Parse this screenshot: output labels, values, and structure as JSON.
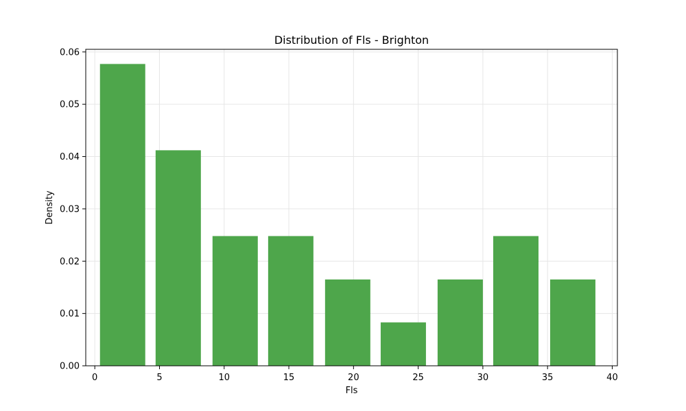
{
  "chart_data": {
    "type": "bar",
    "title": "Distribution of Fls - Brighton",
    "xlabel": "Fls",
    "ylabel": "Density",
    "xlim": [
      -0.7,
      40.4
    ],
    "ylim": [
      0,
      0.0605
    ],
    "xticks": [
      0,
      5,
      10,
      15,
      20,
      25,
      30,
      35,
      40
    ],
    "xtick_labels": [
      "0",
      "5",
      "10",
      "15",
      "20",
      "25",
      "30",
      "35",
      "40"
    ],
    "yticks": [
      0,
      0.01,
      0.02,
      0.03,
      0.04,
      0.05,
      0.06
    ],
    "ytick_labels": [
      "0.00",
      "0.01",
      "0.02",
      "0.03",
      "0.04",
      "0.05",
      "0.06"
    ],
    "grid": true,
    "bars": [
      {
        "x0": 0.4,
        "x1": 3.9,
        "value": 0.0577
      },
      {
        "x0": 4.7,
        "x1": 8.2,
        "value": 0.0412
      },
      {
        "x0": 9.1,
        "x1": 12.6,
        "value": 0.0248
      },
      {
        "x0": 13.4,
        "x1": 16.9,
        "value": 0.0248
      },
      {
        "x0": 17.8,
        "x1": 21.3,
        "value": 0.0165
      },
      {
        "x0": 22.1,
        "x1": 25.6,
        "value": 0.0083
      },
      {
        "x0": 26.5,
        "x1": 30.0,
        "value": 0.0165
      },
      {
        "x0": 30.8,
        "x1": 34.3,
        "value": 0.0248
      },
      {
        "x0": 35.2,
        "x1": 38.7,
        "value": 0.0165
      }
    ],
    "colors": {
      "bar": "#4ea64b",
      "grid": "#e6e6e6",
      "axis": "#000000"
    }
  }
}
